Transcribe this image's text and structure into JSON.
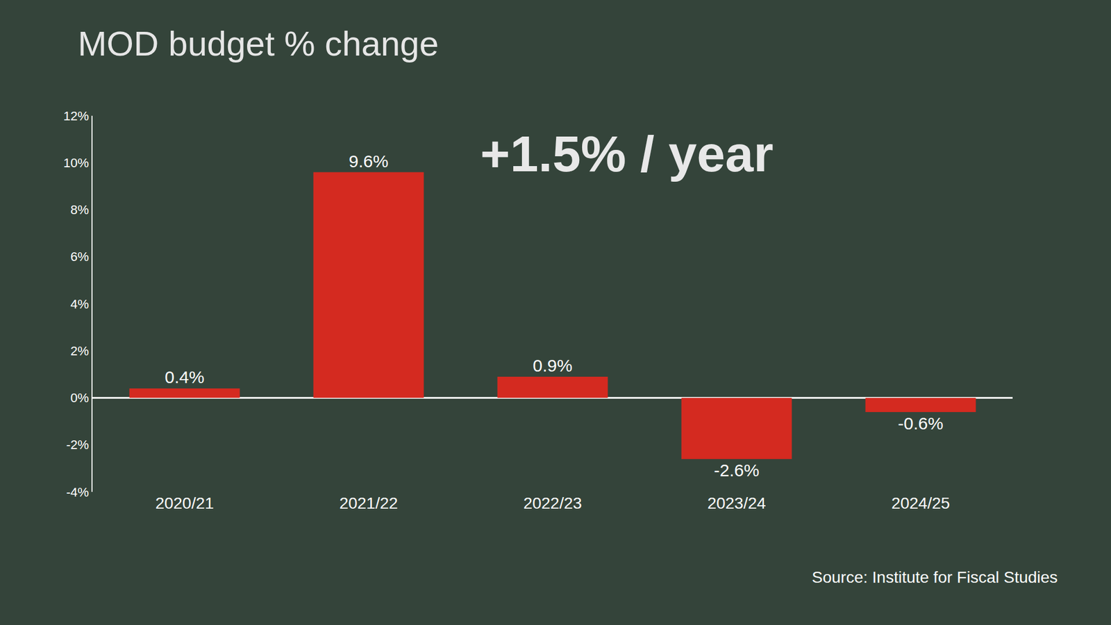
{
  "chart_data": {
    "type": "bar",
    "title": "MOD budget % change",
    "categories": [
      "2020/21",
      "2021/22",
      "2022/23",
      "2023/24",
      "2024/25"
    ],
    "values": [
      0.4,
      9.6,
      0.9,
      -2.6,
      -0.6
    ],
    "value_labels": [
      "0.4%",
      "9.6%",
      "0.9%",
      "-2.6%",
      "-0.6%"
    ],
    "color": "#d42a20",
    "ylim": [
      -4,
      12
    ],
    "yticks": [
      {
        "value": -4,
        "label": "-4%"
      },
      {
        "value": -2,
        "label": "-2%"
      },
      {
        "value": 0,
        "label": "0%"
      },
      {
        "value": 2,
        "label": "2%"
      },
      {
        "value": 4,
        "label": "4%"
      },
      {
        "value": 6,
        "label": "6%"
      },
      {
        "value": 8,
        "label": "8%"
      },
      {
        "value": 10,
        "label": "10%"
      },
      {
        "value": 12,
        "label": "12%"
      }
    ],
    "grid": false,
    "data_labels": true,
    "annotations": [
      "+1.5% / year"
    ],
    "source": "Source: Institute for Fiscal Studies"
  }
}
